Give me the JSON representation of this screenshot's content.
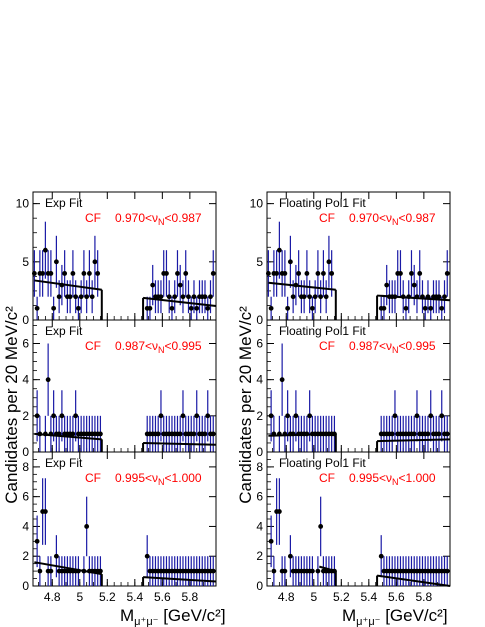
{
  "figure": {
    "ylabel": "Candidates per 20 MeV/c²",
    "xlabel_prefix": "M",
    "xlabel_sub": "μ⁺μ⁻",
    "xlabel_suffix": " [GeV/c²]"
  },
  "chart_data": [
    {
      "type": "scatter",
      "column": 0,
      "row": 0,
      "title": "Exp Fit",
      "label": "CF",
      "range_text": "0.970<ν_N<0.987",
      "ylim": [
        0,
        11
      ],
      "yticks": [
        0,
        5,
        10
      ],
      "xlim": [
        4.66,
        5.99
      ],
      "xticks": [
        4.8,
        5.0,
        5.2,
        5.4,
        5.6,
        5.8
      ],
      "xtick_labels": [
        "4.8",
        "5",
        "5.2",
        "5.4",
        "5.6",
        "5.8"
      ],
      "fit": {
        "left": [
          [
            4.67,
            3.4
          ],
          [
            5.16,
            2.6
          ]
        ],
        "right": [
          [
            5.46,
            1.9
          ],
          [
            5.99,
            1.2
          ]
        ]
      },
      "x": [
        4.67,
        4.69,
        4.71,
        4.73,
        4.75,
        4.77,
        4.79,
        4.81,
        4.83,
        4.85,
        4.87,
        4.89,
        4.91,
        4.93,
        4.95,
        4.97,
        4.99,
        5.01,
        5.03,
        5.05,
        5.07,
        5.09,
        5.11,
        5.13,
        5.49,
        5.51,
        5.53,
        5.55,
        5.57,
        5.59,
        5.61,
        5.63,
        5.65,
        5.67,
        5.69,
        5.71,
        5.73,
        5.75,
        5.77,
        5.79,
        5.81,
        5.83,
        5.85,
        5.87,
        5.89,
        5.91,
        5.93,
        5.95,
        5.97
      ],
      "y": [
        4,
        1,
        4,
        4,
        6,
        4,
        4,
        1,
        5,
        2,
        3,
        4,
        2,
        2,
        4,
        2,
        1,
        2,
        4,
        2,
        4,
        2,
        5,
        4,
        1,
        1,
        3,
        2,
        2,
        2,
        4,
        4,
        2,
        1,
        2,
        4,
        3,
        2,
        4,
        2,
        1,
        2,
        1,
        2,
        2,
        2,
        1,
        2,
        4
      ]
    },
    {
      "type": "scatter",
      "column": 0,
      "row": 1,
      "title": "Exp Fit",
      "label": "CF",
      "range_text": "0.987<ν_N<0.995",
      "ylim": [
        0,
        7.3
      ],
      "yticks": [
        0,
        2,
        4,
        6
      ],
      "xlim": [
        4.66,
        5.99
      ],
      "xticks": [
        4.8,
        5.0,
        5.2,
        5.4,
        5.6,
        5.8
      ],
      "xtick_labels": [
        "4.8",
        "5",
        "5.2",
        "5.4",
        "5.6",
        "5.8"
      ],
      "fit": {
        "left": [
          [
            4.67,
            1.0
          ],
          [
            5.16,
            0.7
          ]
        ],
        "right": [
          [
            5.46,
            0.5
          ],
          [
            5.99,
            0.4
          ]
        ]
      },
      "x": [
        4.69,
        4.71,
        4.75,
        4.77,
        4.79,
        4.81,
        4.83,
        4.85,
        4.87,
        4.89,
        4.91,
        4.93,
        4.95,
        4.97,
        4.99,
        5.01,
        5.03,
        5.05,
        5.07,
        5.09,
        5.11,
        5.13,
        5.15,
        5.49,
        5.51,
        5.53,
        5.55,
        5.57,
        5.59,
        5.61,
        5.63,
        5.65,
        5.67,
        5.69,
        5.71,
        5.73,
        5.75,
        5.77,
        5.79,
        5.81,
        5.83,
        5.85,
        5.87,
        5.89,
        5.91,
        5.93,
        5.95,
        5.97
      ],
      "y": [
        2,
        1,
        1,
        4,
        1,
        2,
        1,
        1,
        2,
        1,
        1,
        1,
        1,
        2,
        1,
        1,
        1,
        1,
        1,
        1,
        1,
        1,
        1,
        1,
        1,
        1,
        1,
        1,
        2,
        1,
        1,
        1,
        1,
        1,
        1,
        1,
        2,
        1,
        1,
        1,
        1,
        2,
        1,
        1,
        1,
        2,
        1,
        1
      ]
    },
    {
      "type": "scatter",
      "column": 0,
      "row": 2,
      "title": "Exp Fit",
      "label": "CF",
      "range_text": "0.995<ν_N<1.000",
      "ylim": [
        0,
        9
      ],
      "yticks": [
        0,
        2,
        4,
        6,
        8
      ],
      "xlim": [
        4.66,
        5.99
      ],
      "xticks": [
        4.8,
        5.0,
        5.2,
        5.4,
        5.6,
        5.8
      ],
      "xtick_labels": [
        "4.8",
        "5",
        "5.2",
        "5.4",
        "5.6",
        "5.8"
      ],
      "fit": {
        "left": [
          [
            4.67,
            1.6
          ],
          [
            5.16,
            0.8
          ]
        ],
        "right": [
          [
            5.46,
            0.6
          ],
          [
            5.99,
            0.3
          ]
        ]
      },
      "x": [
        4.69,
        4.71,
        4.73,
        4.75,
        4.77,
        4.79,
        4.83,
        4.85,
        4.87,
        4.89,
        4.91,
        4.93,
        4.95,
        4.97,
        4.99,
        5.03,
        5.05,
        5.07,
        5.09,
        5.11,
        5.13,
        5.15,
        5.49,
        5.51,
        5.53,
        5.55,
        5.57,
        5.59,
        5.61,
        5.63,
        5.65,
        5.67,
        5.69,
        5.71,
        5.73,
        5.75,
        5.77,
        5.79,
        5.81,
        5.83,
        5.85,
        5.87,
        5.89,
        5.91,
        5.93,
        5.95,
        5.97
      ],
      "y": [
        3,
        1,
        5,
        5,
        1,
        1,
        2,
        1,
        1,
        1,
        1,
        1,
        1,
        1,
        1,
        1,
        4,
        1,
        1,
        1,
        1,
        1,
        2,
        1,
        1,
        1,
        1,
        1,
        1,
        1,
        1,
        1,
        1,
        1,
        1,
        1,
        1,
        1,
        1,
        1,
        1,
        1,
        1,
        1,
        1,
        1,
        1
      ]
    },
    {
      "type": "scatter",
      "column": 1,
      "row": 0,
      "title": "Floating Pol1 Fit",
      "label": "CF",
      "range_text": "0.970<ν_N<0.987",
      "ylim": [
        0,
        11
      ],
      "yticks": [
        0,
        5,
        10
      ],
      "xlim": [
        4.66,
        5.99
      ],
      "xticks": [
        4.8,
        5.0,
        5.2,
        5.4,
        5.6,
        5.8
      ],
      "xtick_labels": [
        "4.8",
        "5",
        "5.2",
        "5.4",
        "5.6",
        "5.8"
      ],
      "fit": {
        "left": [
          [
            4.67,
            3.2
          ],
          [
            5.16,
            2.6
          ]
        ],
        "right": [
          [
            5.46,
            2.1
          ],
          [
            5.99,
            1.7
          ]
        ]
      },
      "x": [
        4.67,
        4.69,
        4.71,
        4.73,
        4.75,
        4.77,
        4.79,
        4.81,
        4.83,
        4.85,
        4.87,
        4.89,
        4.91,
        4.93,
        4.95,
        4.97,
        4.99,
        5.01,
        5.03,
        5.05,
        5.07,
        5.09,
        5.11,
        5.13,
        5.49,
        5.51,
        5.53,
        5.55,
        5.57,
        5.59,
        5.61,
        5.63,
        5.65,
        5.67,
        5.69,
        5.71,
        5.73,
        5.75,
        5.77,
        5.79,
        5.81,
        5.83,
        5.85,
        5.87,
        5.89,
        5.91,
        5.93,
        5.95,
        5.97
      ],
      "y": [
        4,
        1,
        4,
        4,
        6,
        4,
        4,
        1,
        5,
        2,
        3,
        4,
        2,
        2,
        4,
        2,
        1,
        2,
        4,
        2,
        4,
        2,
        5,
        4,
        1,
        1,
        3,
        2,
        2,
        2,
        4,
        4,
        2,
        1,
        2,
        4,
        3,
        2,
        4,
        2,
        1,
        2,
        1,
        2,
        2,
        2,
        1,
        2,
        4
      ]
    },
    {
      "type": "scatter",
      "column": 1,
      "row": 1,
      "title": "Floating Pol1 Fit",
      "label": "CF",
      "range_text": "0.987<ν_N<0.995",
      "ylim": [
        0,
        7.3
      ],
      "yticks": [
        0,
        2,
        4,
        6
      ],
      "xlim": [
        4.66,
        5.99
      ],
      "xticks": [
        4.8,
        5.0,
        5.2,
        5.4,
        5.6,
        5.8
      ],
      "xtick_labels": [
        "4.8",
        "5",
        "5.2",
        "5.4",
        "5.6",
        "5.8"
      ],
      "fit": {
        "left": [
          [
            4.67,
            0.9
          ],
          [
            5.16,
            1.0
          ]
        ],
        "right": [
          [
            5.46,
            0.6
          ],
          [
            5.99,
            0.7
          ]
        ]
      },
      "x": [
        4.69,
        4.71,
        4.75,
        4.77,
        4.79,
        4.81,
        4.83,
        4.85,
        4.87,
        4.89,
        4.91,
        4.93,
        4.95,
        4.97,
        4.99,
        5.01,
        5.03,
        5.05,
        5.07,
        5.09,
        5.11,
        5.13,
        5.15,
        5.49,
        5.51,
        5.53,
        5.55,
        5.57,
        5.59,
        5.61,
        5.63,
        5.65,
        5.67,
        5.69,
        5.71,
        5.73,
        5.75,
        5.77,
        5.79,
        5.81,
        5.83,
        5.85,
        5.87,
        5.89,
        5.91,
        5.93,
        5.95,
        5.97
      ],
      "y": [
        2,
        1,
        1,
        4,
        1,
        2,
        1,
        1,
        2,
        1,
        1,
        1,
        1,
        2,
        1,
        1,
        1,
        1,
        1,
        1,
        1,
        1,
        1,
        1,
        1,
        1,
        1,
        1,
        2,
        1,
        1,
        1,
        1,
        1,
        1,
        1,
        2,
        1,
        1,
        1,
        1,
        2,
        1,
        1,
        1,
        2,
        1,
        1
      ]
    },
    {
      "type": "scatter",
      "column": 1,
      "row": 2,
      "title": "Floating Pol1 Fit",
      "label": "CF",
      "range_text": "0.995<ν_N<1.000",
      "ylim": [
        0,
        9
      ],
      "yticks": [
        0,
        2,
        4,
        6,
        8
      ],
      "xlim": [
        4.66,
        5.99
      ],
      "xticks": [
        4.8,
        5.0,
        5.2,
        5.4,
        5.6,
        5.8
      ],
      "xtick_labels": [
        "4.8",
        "5",
        "5.2",
        "5.4",
        "5.6",
        "5.8"
      ],
      "fit": {
        "left": [
          [
            5.04,
            1.3
          ],
          [
            5.16,
            1.0
          ]
        ],
        "right": [
          [
            5.46,
            0.7
          ],
          [
            5.99,
            0.0
          ]
        ]
      },
      "x": [
        4.69,
        4.71,
        4.73,
        4.75,
        4.77,
        4.79,
        4.83,
        4.85,
        4.87,
        4.89,
        4.91,
        4.93,
        4.95,
        4.97,
        4.99,
        5.03,
        5.05,
        5.07,
        5.09,
        5.11,
        5.13,
        5.15,
        5.49,
        5.51,
        5.53,
        5.55,
        5.57,
        5.59,
        5.61,
        5.63,
        5.65,
        5.67,
        5.69,
        5.71,
        5.73,
        5.75,
        5.77,
        5.79,
        5.81,
        5.83,
        5.85,
        5.87,
        5.89,
        5.91,
        5.93,
        5.95,
        5.97
      ],
      "y": [
        3,
        1,
        5,
        5,
        1,
        1,
        2,
        1,
        1,
        1,
        1,
        1,
        1,
        1,
        1,
        1,
        4,
        1,
        1,
        1,
        1,
        1,
        2,
        1,
        1,
        1,
        1,
        1,
        1,
        1,
        1,
        1,
        1,
        1,
        1,
        1,
        1,
        1,
        1,
        1,
        1,
        1,
        1,
        1,
        1,
        1,
        1
      ]
    }
  ],
  "colors": {
    "data": "#000000",
    "errbar": "#1a1aa6",
    "fit": "#000000",
    "cf_text": "#ff0000"
  }
}
